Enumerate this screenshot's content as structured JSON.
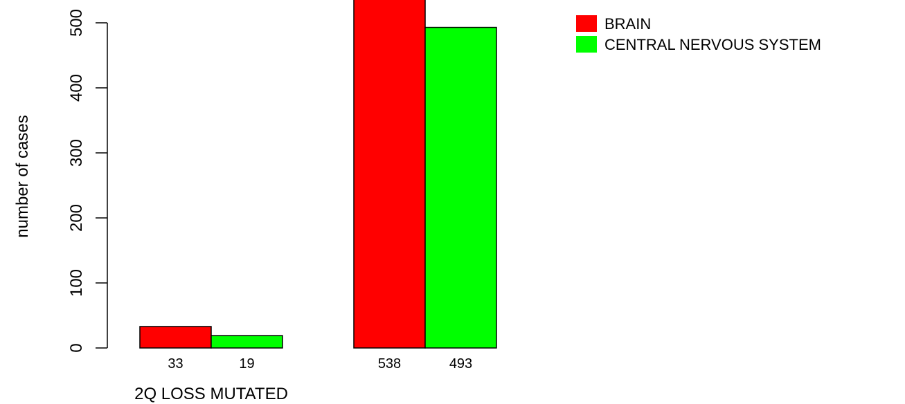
{
  "chart_data": {
    "type": "bar",
    "categories": [
      "2Q LOSS MUTATED",
      ""
    ],
    "series": [
      {
        "name": "BRAIN",
        "color": "#ff0000",
        "values": [
          33,
          538
        ]
      },
      {
        "name": "CENTRAL NERVOUS SYSTEM",
        "color": "#00ff00",
        "values": [
          19,
          493
        ]
      }
    ],
    "ylabel": "number of cases",
    "xlabel": "",
    "yticks": [
      0,
      100,
      200,
      300,
      400,
      500
    ],
    "ylim": [
      0,
      538
    ],
    "grid": false,
    "legend": "top-right"
  }
}
